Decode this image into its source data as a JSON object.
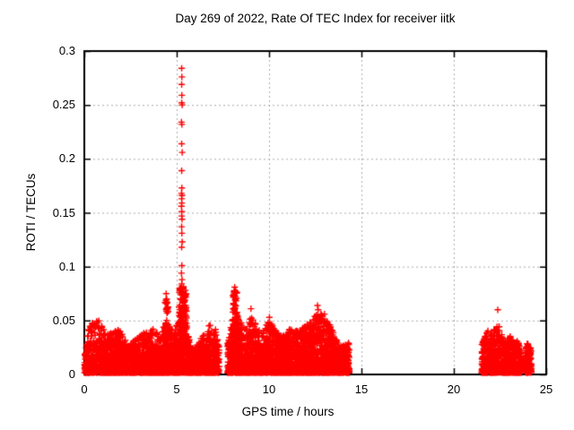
{
  "chart_data": {
    "type": "scatter",
    "title": "Day 269 of 2022, Rate Of TEC Index for receiver iitk",
    "xlabel": "GPS time / hours",
    "ylabel": "ROTI / TECUs",
    "xlim": [
      0,
      25
    ],
    "ylim": [
      0,
      0.3
    ],
    "xticks": [
      0,
      5,
      10,
      15,
      20,
      25
    ],
    "xtick_labels": [
      "0",
      "5",
      "10",
      "15",
      "20",
      "25"
    ],
    "yticks": [
      0,
      0.05,
      0.1,
      0.15,
      0.2,
      0.25,
      0.3
    ],
    "ytick_labels": [
      "0",
      "0.05",
      "0.1",
      "0.15",
      "0.2",
      "0.25",
      "0.3"
    ],
    "grid": true,
    "grid_style": "dashed",
    "legend": "none",
    "marker": "plus",
    "marker_color": "#ff0000",
    "axis_color": "#000000",
    "grid_color": "#ababab",
    "background_color": "#ffffff",
    "peak_point": {
      "x": 5.27,
      "y": 0.284
    },
    "data_gaps_hours": [
      [
        7.35,
        7.75
      ],
      [
        14.4,
        21.5
      ],
      [
        23.68,
        23.85
      ]
    ],
    "series": [
      {
        "name": "ROTI",
        "representation": "density-bands",
        "bands": [
          {
            "x0": 0.0,
            "x1": 7.3,
            "n": 2700,
            "pow": 2.0,
            "envelope": [
              [
                0.0,
                0.022
              ],
              [
                0.3,
                0.048
              ],
              [
                0.8,
                0.05
              ],
              [
                1.2,
                0.038
              ],
              [
                1.6,
                0.04
              ],
              [
                2.0,
                0.042
              ],
              [
                2.35,
                0.026
              ],
              [
                2.8,
                0.034
              ],
              [
                3.3,
                0.04
              ],
              [
                3.7,
                0.044
              ],
              [
                4.1,
                0.036
              ],
              [
                4.45,
                0.052
              ],
              [
                4.8,
                0.04
              ],
              [
                5.0,
                0.048
              ],
              [
                5.27,
                0.06
              ],
              [
                5.5,
                0.05
              ],
              [
                5.8,
                0.024
              ],
              [
                6.1,
                0.027
              ],
              [
                6.45,
                0.04
              ],
              [
                6.8,
                0.046
              ],
              [
                7.1,
                0.042
              ],
              [
                7.3,
                0.028
              ]
            ]
          },
          {
            "x0": 7.75,
            "x1": 14.35,
            "n": 2700,
            "pow": 2.0,
            "envelope": [
              [
                7.75,
                0.03
              ],
              [
                7.95,
                0.05
              ],
              [
                8.2,
                0.058
              ],
              [
                8.5,
                0.048
              ],
              [
                8.8,
                0.042
              ],
              [
                9.0,
                0.056
              ],
              [
                9.3,
                0.046
              ],
              [
                9.6,
                0.038
              ],
              [
                10.0,
                0.052
              ],
              [
                10.3,
                0.042
              ],
              [
                10.7,
                0.035
              ],
              [
                11.0,
                0.04
              ],
              [
                11.3,
                0.046
              ],
              [
                11.6,
                0.04
              ],
              [
                12.0,
                0.046
              ],
              [
                12.35,
                0.05
              ],
              [
                12.65,
                0.06
              ],
              [
                12.95,
                0.055
              ],
              [
                13.25,
                0.048
              ],
              [
                13.55,
                0.036
              ],
              [
                13.85,
                0.026
              ],
              [
                14.1,
                0.028
              ],
              [
                14.35,
                0.03
              ]
            ]
          },
          {
            "x0": 21.5,
            "x1": 23.68,
            "n": 780,
            "pow": 1.9,
            "envelope": [
              [
                21.5,
                0.028
              ],
              [
                21.7,
                0.044
              ],
              [
                21.95,
                0.038
              ],
              [
                22.25,
                0.046
              ],
              [
                22.5,
                0.044
              ],
              [
                22.75,
                0.032
              ],
              [
                23.0,
                0.036
              ],
              [
                23.3,
                0.034
              ],
              [
                23.55,
                0.028
              ],
              [
                23.68,
                0.022
              ]
            ]
          },
          {
            "x0": 23.85,
            "x1": 24.2,
            "n": 170,
            "pow": 1.7,
            "envelope": [
              [
                23.85,
                0.024
              ],
              [
                24.0,
                0.03
              ],
              [
                24.2,
                0.024
              ]
            ]
          }
        ],
        "clusters": [
          {
            "x0": 5.13,
            "x1": 5.38,
            "ymin": 0.02,
            "ymax": 0.082,
            "n": 110
          },
          {
            "x0": 5.4,
            "x1": 5.56,
            "ymin": 0.02,
            "ymax": 0.075,
            "n": 55
          },
          {
            "x0": 4.35,
            "x1": 4.55,
            "ymin": 0.02,
            "ymax": 0.07,
            "n": 40
          },
          {
            "x0": 8.05,
            "x1": 8.28,
            "ymin": 0.02,
            "ymax": 0.078,
            "n": 80
          }
        ],
        "outlier_points": [
          [
            5.27,
            0.284
          ],
          [
            5.28,
            0.276
          ],
          [
            5.27,
            0.269
          ],
          [
            5.28,
            0.259
          ],
          [
            5.27,
            0.252
          ],
          [
            5.3,
            0.25
          ],
          [
            5.26,
            0.234
          ],
          [
            5.28,
            0.232
          ],
          [
            5.27,
            0.214
          ],
          [
            5.3,
            0.206
          ],
          [
            5.27,
            0.189
          ],
          [
            5.28,
            0.173
          ],
          [
            5.26,
            0.168
          ],
          [
            5.29,
            0.166
          ],
          [
            5.27,
            0.163
          ],
          [
            5.28,
            0.159
          ],
          [
            5.26,
            0.156
          ],
          [
            5.28,
            0.151
          ],
          [
            5.27,
            0.147
          ],
          [
            5.29,
            0.144
          ],
          [
            5.27,
            0.137
          ],
          [
            5.28,
            0.131
          ],
          [
            5.3,
            0.123
          ],
          [
            5.27,
            0.118
          ],
          [
            5.28,
            0.101
          ],
          [
            5.26,
            0.094
          ],
          [
            5.29,
            0.088
          ],
          [
            5.27,
            0.084
          ],
          [
            5.24,
            0.079
          ],
          [
            5.31,
            0.075
          ],
          [
            5.47,
            0.078
          ],
          [
            5.49,
            0.073
          ],
          [
            5.45,
            0.069
          ],
          [
            5.48,
            0.064
          ],
          [
            5.5,
            0.059
          ],
          [
            4.43,
            0.075
          ],
          [
            4.46,
            0.07
          ],
          [
            4.41,
            0.066
          ],
          [
            4.45,
            0.061
          ],
          [
            4.48,
            0.057
          ],
          [
            8.14,
            0.081
          ],
          [
            8.17,
            0.077
          ],
          [
            8.12,
            0.073
          ],
          [
            8.16,
            0.069
          ],
          [
            8.19,
            0.064
          ],
          [
            8.13,
            0.06
          ],
          [
            9.02,
            0.061
          ],
          [
            10.02,
            0.053
          ],
          [
            12.62,
            0.064
          ],
          [
            12.66,
            0.06
          ],
          [
            13.0,
            0.056
          ],
          [
            22.38,
            0.06
          ]
        ]
      }
    ]
  }
}
